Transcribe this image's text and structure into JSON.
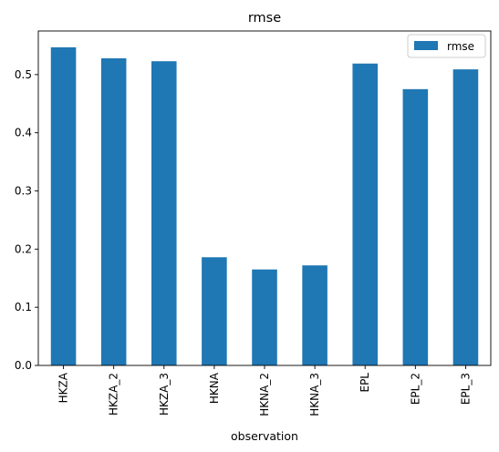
{
  "chart_data": {
    "type": "bar",
    "title": "rmse",
    "xlabel": "observation",
    "ylabel": "",
    "categories": [
      "HKZA",
      "HKZA_2",
      "HKZA_3",
      "HKNA",
      "HKNA_2",
      "HKNA_3",
      "EPL",
      "EPL_2",
      "EPL_3"
    ],
    "series": [
      {
        "name": "rmse",
        "color": "#1f77b4",
        "values": [
          0.547,
          0.528,
          0.523,
          0.186,
          0.165,
          0.172,
          0.519,
          0.475,
          0.509
        ]
      }
    ],
    "ylim": [
      0,
      0.575
    ],
    "yticks": [
      0.0,
      0.1,
      0.2,
      0.3,
      0.4,
      0.5
    ],
    "ytick_labels": [
      "0.0",
      "0.1",
      "0.2",
      "0.3",
      "0.4",
      "0.5"
    ],
    "grid": false,
    "legend": {
      "position": "top-right"
    }
  }
}
